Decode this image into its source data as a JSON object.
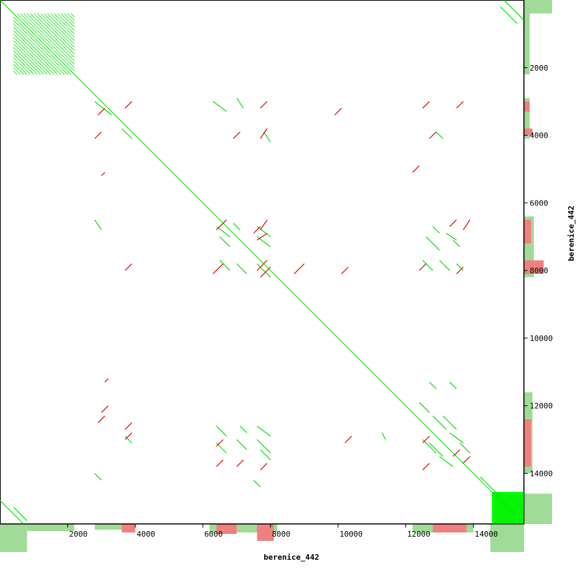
{
  "chart_data": {
    "type": "scatter",
    "subtype": "dot-plot (self-alignment)",
    "title": "",
    "xlabel": "berenice_442",
    "ylabel": "berenice_442",
    "xlim": [
      0,
      15500
    ],
    "ylim": [
      0,
      15500
    ],
    "y_inverted": true,
    "x_ticks": [
      2000,
      4000,
      6000,
      8000,
      10000,
      12000,
      14000
    ],
    "y_ticks": [
      2000,
      4000,
      6000,
      8000,
      10000,
      12000,
      14000
    ],
    "grid": false,
    "colors": {
      "forward": "#00e000",
      "reverse": "#e00000",
      "coverage_forward": "#a0dc98",
      "coverage_reverse": "#f08080",
      "block": "#00ff00"
    },
    "series": [
      {
        "name": "",
        "style": "forward",
        "segments": [
          [
            0,
            0,
            15500,
            15500
          ],
          [
            400,
            15000,
            800,
            15400
          ],
          [
            0,
            14800,
            700,
            15500
          ],
          [
            14900,
            0,
            15500,
            600
          ],
          [
            14800,
            200,
            15300,
            700
          ],
          [
            14200,
            14100,
            15500,
            15400
          ],
          [
            2800,
            3000,
            3300,
            3400
          ],
          [
            3600,
            3800,
            3900,
            4100
          ],
          [
            6300,
            3000,
            6700,
            3300
          ],
          [
            7000,
            2900,
            7200,
            3200
          ],
          [
            7800,
            3900,
            8000,
            4200
          ],
          [
            12900,
            3900,
            13100,
            4100
          ],
          [
            2800,
            6500,
            3000,
            6800
          ],
          [
            6400,
            6700,
            6800,
            7000
          ],
          [
            6500,
            7000,
            6800,
            7300
          ],
          [
            6900,
            6600,
            7100,
            6800
          ],
          [
            7600,
            6700,
            8000,
            7000
          ],
          [
            7600,
            7000,
            8000,
            7300
          ],
          [
            12800,
            6700,
            13000,
            6900
          ],
          [
            12600,
            7000,
            13000,
            7400
          ],
          [
            13200,
            6900,
            13500,
            7100
          ],
          [
            13400,
            7100,
            13600,
            7300
          ],
          [
            6500,
            7700,
            6800,
            8000
          ],
          [
            7000,
            7800,
            7300,
            8100
          ],
          [
            7600,
            7800,
            8000,
            8200
          ],
          [
            12500,
            7700,
            12800,
            8000
          ],
          [
            13000,
            7700,
            13300,
            8000
          ],
          [
            13500,
            7800,
            13700,
            8000
          ],
          [
            2800,
            14000,
            3000,
            14200
          ],
          [
            12700,
            11300,
            12900,
            11500
          ],
          [
            13300,
            11300,
            13500,
            11500
          ],
          [
            12400,
            11900,
            12700,
            12200
          ],
          [
            12800,
            12300,
            13200,
            12700
          ],
          [
            13100,
            12300,
            13500,
            12700
          ],
          [
            12500,
            13000,
            12900,
            13400
          ],
          [
            12700,
            13100,
            13100,
            13500
          ],
          [
            13300,
            12800,
            13700,
            13100
          ],
          [
            13600,
            13100,
            13900,
            13400
          ],
          [
            13000,
            13500,
            13400,
            13800
          ],
          [
            6400,
            12600,
            6700,
            12900
          ],
          [
            6400,
            13100,
            6700,
            13400
          ],
          [
            7100,
            12600,
            7300,
            12800
          ],
          [
            7000,
            13000,
            7300,
            13300
          ],
          [
            7600,
            12600,
            8000,
            12900
          ],
          [
            7600,
            13000,
            8000,
            13400
          ],
          [
            7700,
            13300,
            8000,
            13600
          ],
          [
            3700,
            12900,
            3900,
            13100
          ],
          [
            11300,
            12800,
            11400,
            13000
          ],
          [
            7500,
            14200,
            7700,
            14400
          ]
        ]
      },
      {
        "name": "",
        "style": "reverse",
        "segments": [
          [
            3100,
            3200,
            2900,
            3400
          ],
          [
            3900,
            3000,
            3700,
            3200
          ],
          [
            3000,
            3900,
            2800,
            4100
          ],
          [
            7900,
            3000,
            7700,
            3200
          ],
          [
            7100,
            3900,
            6900,
            4100
          ],
          [
            7900,
            3800,
            7700,
            4100
          ],
          [
            10100,
            3200,
            9900,
            3400
          ],
          [
            12900,
            3900,
            12700,
            4100
          ],
          [
            12700,
            3000,
            12500,
            3200
          ],
          [
            13700,
            3000,
            13500,
            3200
          ],
          [
            12400,
            4900,
            12200,
            5100
          ],
          [
            3100,
            5100,
            3000,
            5200
          ],
          [
            6700,
            6500,
            6400,
            6800
          ],
          [
            7700,
            6700,
            7500,
            6900
          ],
          [
            7900,
            6500,
            7700,
            6800
          ],
          [
            7900,
            6900,
            7600,
            7100
          ],
          [
            13500,
            6500,
            13300,
            6700
          ],
          [
            13900,
            6500,
            13700,
            6800
          ],
          [
            6600,
            7800,
            6300,
            8100
          ],
          [
            7900,
            7700,
            7600,
            8000
          ],
          [
            8000,
            7900,
            7700,
            8200
          ],
          [
            9000,
            7800,
            8700,
            8100
          ],
          [
            10300,
            7900,
            10100,
            8100
          ],
          [
            12600,
            7800,
            12400,
            8000
          ],
          [
            13700,
            7900,
            13500,
            8100
          ],
          [
            3900,
            7800,
            3700,
            8000
          ],
          [
            3200,
            12000,
            3000,
            12200
          ],
          [
            3100,
            12300,
            2900,
            12500
          ],
          [
            3900,
            12500,
            3700,
            12700
          ],
          [
            3900,
            12800,
            3700,
            13000
          ],
          [
            6600,
            13600,
            6400,
            13800
          ],
          [
            7200,
            13600,
            7000,
            13800
          ],
          [
            6600,
            13000,
            6400,
            13200
          ],
          [
            7900,
            13700,
            7700,
            13900
          ],
          [
            13600,
            13300,
            13400,
            13500
          ],
          [
            13900,
            13500,
            13700,
            13700
          ],
          [
            12700,
            13700,
            12500,
            13900
          ],
          [
            10400,
            12900,
            10200,
            13100
          ],
          [
            12700,
            12900,
            12500,
            13100
          ],
          [
            3200,
            11200,
            3100,
            11300
          ]
        ]
      }
    ],
    "coverage_x": [
      {
        "style": "forward",
        "from": 0,
        "to": 800,
        "value": 1.0
      },
      {
        "style": "forward",
        "from": 800,
        "to": 2200,
        "value": 0.25
      },
      {
        "style": "forward",
        "from": 2800,
        "to": 3900,
        "value": 0.2
      },
      {
        "style": "reverse",
        "from": 3600,
        "to": 4000,
        "value": 0.3
      },
      {
        "style": "forward",
        "from": 6200,
        "to": 8200,
        "value": 0.3
      },
      {
        "style": "reverse",
        "from": 6400,
        "to": 7000,
        "value": 0.35
      },
      {
        "style": "reverse",
        "from": 7600,
        "to": 8100,
        "value": 0.6
      },
      {
        "style": "forward",
        "from": 12200,
        "to": 14000,
        "value": 0.3
      },
      {
        "style": "reverse",
        "from": 12800,
        "to": 13800,
        "value": 0.3
      },
      {
        "style": "forward",
        "from": 14500,
        "to": 15500,
        "value": 1.0
      }
    ],
    "coverage_y": [
      {
        "style": "forward",
        "from": 0,
        "to": 400,
        "value": 1.0
      },
      {
        "style": "forward",
        "from": 400,
        "to": 2200,
        "value": 0.2
      },
      {
        "style": "forward",
        "from": 2900,
        "to": 4100,
        "value": 0.2
      },
      {
        "style": "reverse",
        "from": 3000,
        "to": 3300,
        "value": 0.2
      },
      {
        "style": "reverse",
        "from": 3800,
        "to": 4000,
        "value": 0.3
      },
      {
        "style": "forward",
        "from": 6400,
        "to": 8200,
        "value": 0.35
      },
      {
        "style": "reverse",
        "from": 6500,
        "to": 7200,
        "value": 0.25
      },
      {
        "style": "reverse",
        "from": 7700,
        "to": 8100,
        "value": 0.7
      },
      {
        "style": "forward",
        "from": 11600,
        "to": 14000,
        "value": 0.3
      },
      {
        "style": "reverse",
        "from": 12400,
        "to": 13800,
        "value": 0.25
      },
      {
        "style": "forward",
        "from": 14600,
        "to": 15500,
        "value": 1.0
      }
    ]
  }
}
